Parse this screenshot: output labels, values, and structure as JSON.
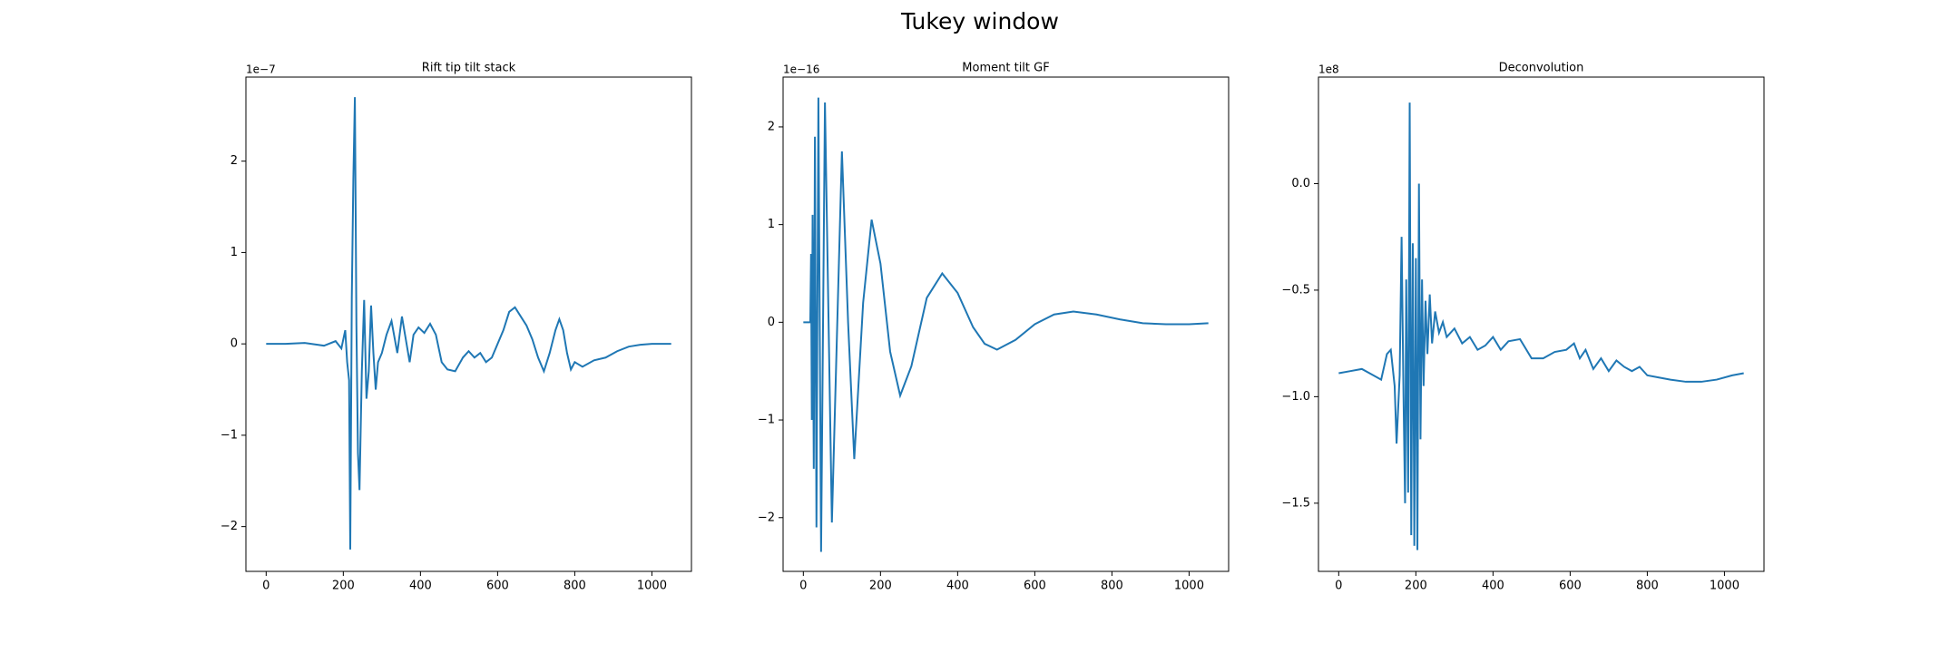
{
  "title": "Tukey window",
  "chart_data": [
    {
      "type": "line",
      "title": "Rift tip tilt stack",
      "y_offset_label": "1e−7",
      "color": "#1f77b4",
      "x": [
        0,
        50,
        100,
        150,
        180,
        195,
        205,
        210,
        215,
        218,
        222,
        226,
        230,
        234,
        238,
        242,
        248,
        254,
        260,
        266,
        272,
        278,
        284,
        290,
        300,
        312,
        325,
        340,
        352,
        362,
        372,
        382,
        395,
        410,
        425,
        440,
        455,
        470,
        490,
        510,
        525,
        540,
        555,
        570,
        585,
        600,
        615,
        630,
        645,
        660,
        675,
        690,
        705,
        720,
        735,
        750,
        760,
        770,
        780,
        790,
        800,
        820,
        850,
        880,
        910,
        940,
        970,
        1000,
        1050
      ],
      "values": [
        0,
        0,
        0.01,
        -0.02,
        0.03,
        -0.05,
        0.15,
        -0.2,
        -0.4,
        -2.25,
        0.5,
        1.8,
        2.7,
        0.2,
        -1.2,
        -1.6,
        -0.3,
        0.48,
        -0.6,
        -0.3,
        0.42,
        -0.1,
        -0.5,
        -0.2,
        -0.1,
        0.1,
        0.25,
        -0.1,
        0.3,
        0.05,
        -0.2,
        0.1,
        0.18,
        0.12,
        0.22,
        0.1,
        -0.2,
        -0.28,
        -0.3,
        -0.15,
        -0.08,
        -0.15,
        -0.1,
        -0.2,
        -0.15,
        0,
        0.15,
        0.35,
        0.4,
        0.3,
        0.2,
        0.05,
        -0.15,
        -0.3,
        -0.1,
        0.15,
        0.27,
        0.15,
        -0.1,
        -0.28,
        -0.2,
        -0.25,
        -0.18,
        -0.15,
        -0.08,
        -0.03,
        -0.01,
        0,
        0
      ],
      "xlim": [
        -52.5,
        1102.5
      ],
      "xticks": [
        0,
        200,
        400,
        600,
        800,
        1000
      ],
      "ylim": [
        -2.49,
        2.92
      ],
      "yticks": [
        {
          "value": -2,
          "label": "−2"
        },
        {
          "value": -1,
          "label": "−1"
        },
        0,
        1,
        2
      ]
    },
    {
      "type": "line",
      "title": "Moment tilt GF",
      "y_offset_label": "1e−16",
      "color": "#1f77b4",
      "x": [
        0,
        18,
        20,
        22,
        24,
        27,
        30,
        34,
        39,
        46,
        56,
        74,
        100,
        116,
        132,
        155,
        177,
        200,
        225,
        251,
        280,
        320,
        360,
        400,
        440,
        470,
        502,
        550,
        600,
        650,
        700,
        760,
        820,
        880,
        940,
        1000,
        1050
      ],
      "values": [
        0,
        0,
        0.7,
        -1.0,
        1.1,
        -1.5,
        1.9,
        -2.1,
        2.3,
        -2.35,
        2.25,
        -2.05,
        1.75,
        0,
        -1.4,
        0.2,
        1.05,
        0.6,
        -0.3,
        -0.75,
        -0.45,
        0.25,
        0.5,
        0.3,
        -0.05,
        -0.22,
        -0.28,
        -0.18,
        -0.02,
        0.08,
        0.11,
        0.08,
        0.03,
        -0.01,
        -0.02,
        -0.02,
        -0.01
      ],
      "xlim": [
        -52.5,
        1102.5
      ],
      "xticks": [
        0,
        200,
        400,
        600,
        800,
        1000
      ],
      "ylim": [
        -2.55,
        2.51
      ],
      "yticks": [
        {
          "value": -2,
          "label": "−2"
        },
        {
          "value": -1,
          "label": "−1"
        },
        0,
        1,
        2
      ]
    },
    {
      "type": "line",
      "title": "Deconvolution",
      "y_offset_label": "1e8",
      "color": "#1f77b4",
      "x": [
        0,
        30,
        60,
        90,
        110,
        125,
        135,
        145,
        150,
        158,
        163,
        168,
        172,
        175,
        180,
        184,
        188,
        192,
        196,
        200,
        204,
        208,
        212,
        216,
        220,
        225,
        230,
        236,
        242,
        250,
        260,
        270,
        280,
        300,
        320,
        340,
        360,
        380,
        400,
        420,
        440,
        470,
        500,
        530,
        560,
        590,
        610,
        625,
        640,
        660,
        680,
        700,
        720,
        740,
        760,
        780,
        800,
        830,
        860,
        900,
        940,
        980,
        1020,
        1050
      ],
      "values": [
        -0.89,
        -0.88,
        -0.87,
        -0.9,
        -0.92,
        -0.8,
        -0.78,
        -0.95,
        -1.22,
        -0.9,
        -0.25,
        -1.0,
        -1.5,
        -0.45,
        -1.45,
        0.38,
        -1.65,
        -0.28,
        -1.7,
        -0.35,
        -1.72,
        0.0,
        -1.2,
        -0.45,
        -0.95,
        -0.55,
        -0.8,
        -0.52,
        -0.75,
        -0.6,
        -0.7,
        -0.65,
        -0.72,
        -0.68,
        -0.75,
        -0.72,
        -0.78,
        -0.76,
        -0.72,
        -0.78,
        -0.74,
        -0.73,
        -0.82,
        -0.82,
        -0.79,
        -0.78,
        -0.75,
        -0.82,
        -0.78,
        -0.87,
        -0.82,
        -0.88,
        -0.83,
        -0.86,
        -0.88,
        -0.86,
        -0.9,
        -0.91,
        -0.92,
        -0.93,
        -0.93,
        -0.92,
        -0.9,
        -0.89
      ],
      "xlim": [
        -52.5,
        1102.5
      ],
      "xticks": [
        0,
        200,
        400,
        600,
        800,
        1000
      ],
      "ylim": [
        -1.82,
        0.5
      ],
      "yticks": [
        {
          "value": -1.5,
          "label": "−1.5"
        },
        {
          "value": -1.0,
          "label": "−1.0"
        },
        {
          "value": -0.5,
          "label": "−0.5"
        },
        {
          "value": 0,
          "label": "0.0"
        }
      ]
    }
  ]
}
